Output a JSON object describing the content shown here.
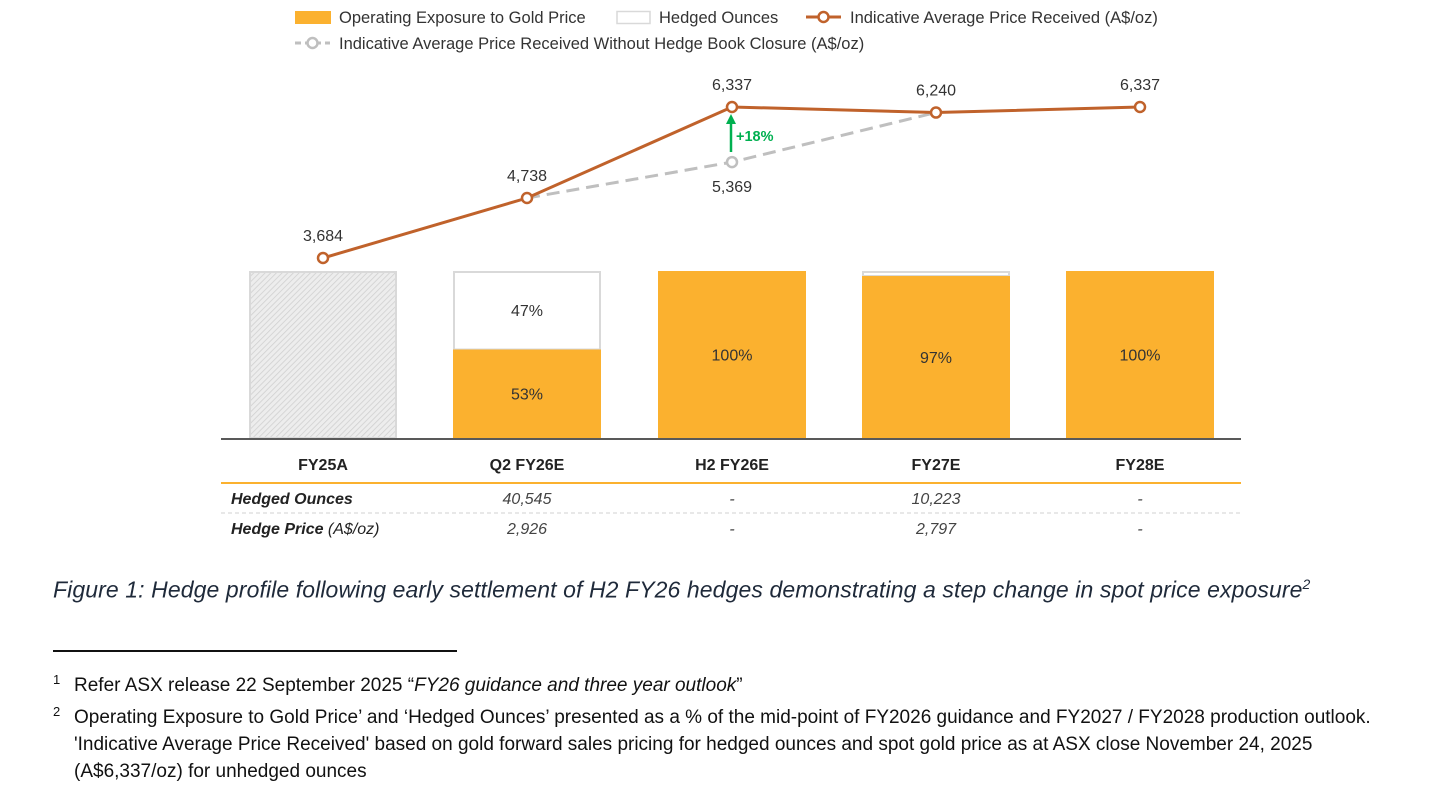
{
  "chart_data": {
    "type": "bar+line",
    "legend": [
      {
        "label": "Operating Exposure to Gold Price",
        "swatch": "bar",
        "color": "#FBB12F"
      },
      {
        "label": "Hedged Ounces",
        "swatch": "bar-outline",
        "color": "#D9D9D9"
      },
      {
        "label": "Indicative Average Price Received (A$/oz)",
        "swatch": "line-marker",
        "color": "#C0622B"
      },
      {
        "label": "Indicative Average Price Received Without Hedge Book Closure (A$/oz)",
        "swatch": "dashed-line-marker",
        "color": "#BFBFBF"
      }
    ],
    "categories": [
      "FY25A",
      "Q2 FY26E",
      "H2 FY26E",
      "FY27E",
      "FY28E"
    ],
    "bars": {
      "exposure_pct": [
        null,
        53,
        100,
        97,
        100
      ],
      "hedged_pct": [
        null,
        47,
        0,
        3,
        0
      ],
      "exposure_labels": [
        "",
        "53%",
        "100%",
        "97%",
        "100%"
      ],
      "hedged_labels": [
        "",
        "47%",
        "",
        "",
        ""
      ],
      "fy25a_style": "hatched-grey"
    },
    "line_price_received": {
      "values": [
        3684,
        4738,
        6337,
        6240,
        6337
      ],
      "labels": [
        "3,684",
        "4,738",
        "6,337",
        "6,240",
        "6,337"
      ]
    },
    "line_without_closure": {
      "x_indices": [
        1,
        2,
        3
      ],
      "values": [
        4738,
        5369,
        6240
      ],
      "labels": [
        "",
        "5,369",
        ""
      ]
    },
    "annotation": {
      "text": "+18%",
      "color": "#00B050",
      "category": "H2 FY26E"
    },
    "table": {
      "rows": [
        {
          "label": "Hedged Ounces",
          "unit": "",
          "values": [
            "",
            "40,545",
            "-",
            "10,223",
            "-"
          ]
        },
        {
          "label": "Hedge Price",
          "unit": " (A$/oz)",
          "values": [
            "",
            "2,926",
            "-",
            "2,797",
            "-"
          ]
        }
      ]
    }
  },
  "caption": {
    "text": "Figure 1: Hedge profile following early settlement of H2 FY26 hedges demonstrating a step change in spot price exposure",
    "sup": "2"
  },
  "footnotes": [
    {
      "num": "1",
      "pre": "Refer ASX release 22 September 2025 “",
      "italic": "FY26 guidance and three year outlook",
      "post": "”"
    },
    {
      "num": "2",
      "text": "Operating Exposure to Gold Price’ and ‘Hedged Ounces’ presented as a % of the mid-point of FY2026 guidance and FY2027 / FY2028 production outlook. 'Indicative Average Price Received' based on gold forward sales pricing for hedged ounces and spot gold price as at ASX close November 24, 2025 (A$6,337/oz) for unhedged ounces"
    }
  ]
}
